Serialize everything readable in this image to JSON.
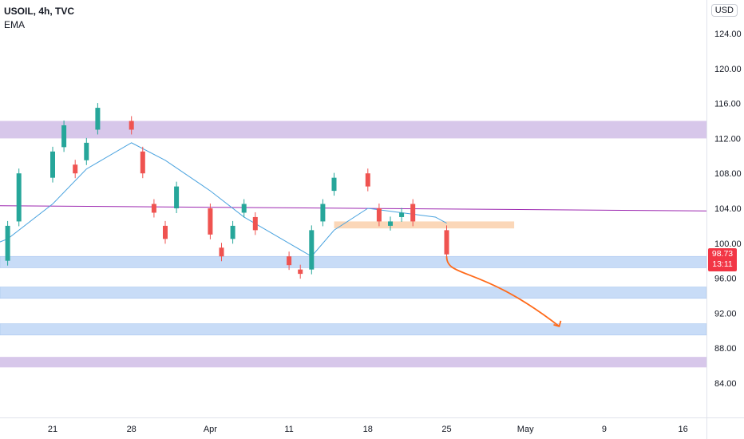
{
  "legend": {
    "symbol": "USOIL, 4h, TVC",
    "indicator": "EMA"
  },
  "currency": "USD",
  "last_price": {
    "value": "98.73",
    "countdown": "13:11",
    "color": "#f23645"
  },
  "colors": {
    "up": "#26a69a",
    "down": "#ef5350",
    "ema": "#4aa3df",
    "horizontal_line": "#9c27b0",
    "purple_zone": "#d7c7ea",
    "blue_zone": "#c8dcf7",
    "orange_zone": "#fbd7b8",
    "arrow": "#ff6a1a"
  },
  "chart_data": {
    "type": "candlestick",
    "title": "",
    "xlabel": "",
    "ylabel": "",
    "ylim": [
      81.5,
      126.5
    ],
    "y_ticks": [
      "124.00",
      "120.00",
      "116.00",
      "112.00",
      "108.00",
      "104.00",
      "100.00",
      "96.00",
      "92.00",
      "88.00",
      "84.00"
    ],
    "x_ticks": [
      "21",
      "28",
      "Apr",
      "11",
      "18",
      "25",
      "May",
      "9",
      "16"
    ],
    "x_tick_dates": [
      "2022-03-21",
      "2022-03-28",
      "2022-04-04",
      "2022-04-11",
      "2022-04-18",
      "2022-04-25",
      "2022-05-02",
      "2022-05-09",
      "2022-05-16"
    ],
    "grid": false,
    "series": [
      {
        "type": "candlestick",
        "points": [
          [
            "2022-03-15",
            98.5,
            100.5
          ],
          [
            "2022-03-16",
            100.0,
            98.5
          ],
          [
            "2022-03-17",
            98.0,
            102.0
          ],
          [
            "2022-03-18",
            102.5,
            108.0
          ],
          [
            "2022-03-21",
            107.5,
            110.5
          ],
          [
            "2022-03-22",
            111.0,
            113.5
          ],
          [
            "2022-03-23",
            109.0,
            108.0
          ],
          [
            "2022-03-24",
            109.5,
            111.5
          ],
          [
            "2022-03-25",
            113.0,
            115.5
          ],
          [
            "2022-03-28",
            114.0,
            113.0
          ],
          [
            "2022-03-29",
            110.5,
            108.0
          ],
          [
            "2022-03-30",
            104.5,
            103.5
          ],
          [
            "2022-03-31",
            102.0,
            100.5
          ],
          [
            "2022-04-01",
            104.0,
            106.5
          ],
          [
            "2022-04-04",
            104.0,
            101.0
          ],
          [
            "2022-04-05",
            99.5,
            98.5
          ],
          [
            "2022-04-06",
            100.5,
            102.0
          ],
          [
            "2022-04-07",
            103.5,
            104.5
          ],
          [
            "2022-04-08",
            103.0,
            101.5
          ],
          [
            "2022-04-11",
            98.5,
            97.5
          ],
          [
            "2022-04-12",
            97.0,
            96.5
          ],
          [
            "2022-04-13",
            97.0,
            101.5
          ],
          [
            "2022-04-14",
            102.5,
            104.5
          ],
          [
            "2022-04-15",
            106.0,
            107.5
          ],
          [
            "2022-04-18",
            108.0,
            106.5
          ],
          [
            "2022-04-19",
            104.0,
            102.5
          ],
          [
            "2022-04-20",
            102.0,
            102.5
          ],
          [
            "2022-04-21",
            103.0,
            103.5
          ],
          [
            "2022-04-22",
            104.5,
            102.5
          ],
          [
            "2022-04-25",
            101.5,
            98.73
          ]
        ]
      },
      {
        "type": "line",
        "kind": "EMA",
        "points": [
          [
            "2022-03-15",
            99.5
          ],
          [
            "2022-03-17",
            100.5
          ],
          [
            "2022-03-21",
            104.5
          ],
          [
            "2022-03-24",
            108.5
          ],
          [
            "2022-03-28",
            111.5
          ],
          [
            "2022-03-31",
            109.5
          ],
          [
            "2022-04-04",
            106.0
          ],
          [
            "2022-04-07",
            103.0
          ],
          [
            "2022-04-11",
            100.0
          ],
          [
            "2022-04-13",
            98.5
          ],
          [
            "2022-04-15",
            101.5
          ],
          [
            "2022-04-18",
            104.0
          ],
          [
            "2022-04-21",
            103.5
          ],
          [
            "2022-04-24",
            103.0
          ],
          [
            "2022-04-25",
            102.3
          ]
        ]
      }
    ],
    "horizontal_lines": [
      {
        "y_start": 104.3,
        "y_end": 103.7
      }
    ],
    "zones": [
      {
        "color": "purple",
        "y1": 112.0,
        "y2": 114.0
      },
      {
        "color": "blue",
        "y1": 97.2,
        "y2": 98.5
      },
      {
        "color": "blue",
        "y1": 93.7,
        "y2": 95.0
      },
      {
        "color": "blue",
        "y1": 89.5,
        "y2": 90.8
      },
      {
        "color": "purple",
        "y1": 85.8,
        "y2": 87.0
      },
      {
        "color": "orange",
        "y1": 101.7,
        "y2": 102.5,
        "x_from": "2022-04-15",
        "x_to": "2022-05-01"
      }
    ],
    "projection": {
      "points": [
        [
          "2022-04-25",
          98.5
        ],
        [
          "2022-04-25",
          96.0
        ],
        [
          "2022-04-28",
          97.5
        ],
        [
          "2022-05-05",
          90.5
        ]
      ]
    }
  }
}
